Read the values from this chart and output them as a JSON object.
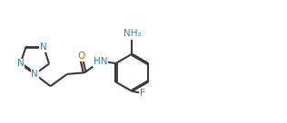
{
  "bg_color": "#ffffff",
  "bond_color": "#3a3a3a",
  "atom_colors": {
    "N": "#3a7fbf",
    "O": "#cc6600",
    "F": "#3a7fbf",
    "C": "#3a3a3a"
  },
  "lw": 1.5,
  "fs": 7.5,
  "xlim": [
    0,
    9.5
  ],
  "ylim": [
    0,
    4.0
  ]
}
